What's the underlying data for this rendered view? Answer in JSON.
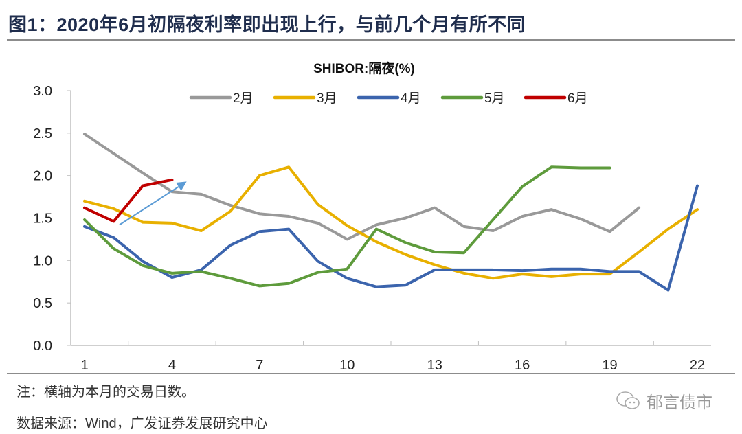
{
  "title": "图1：2020年6月初隔夜利率即出现上行，与前几个月有所不同",
  "note": "注：横轴为本月的交易日数。",
  "source": "数据来源：Wind，广发证券发展研究中心",
  "watermark": "郁言债市",
  "chart_data": {
    "type": "line",
    "title": "SHIBOR:隔夜(%)",
    "xlabel": "",
    "ylabel": "",
    "xlim": [
      1,
      22
    ],
    "ylim": [
      0,
      3.0
    ],
    "x_ticks": [
      "1",
      "4",
      "7",
      "10",
      "13",
      "16",
      "19",
      "22"
    ],
    "y_ticks": [
      "0.0",
      "0.5",
      "1.0",
      "1.5",
      "2.0",
      "2.5",
      "3.0"
    ],
    "legend_position": "top",
    "grid": false,
    "series": [
      {
        "name": "2月",
        "color": "#999999",
        "values": [
          2.49,
          2.26,
          2.03,
          1.81,
          1.78,
          1.65,
          1.55,
          1.52,
          1.44,
          1.25,
          1.42,
          1.5,
          1.62,
          1.4,
          1.35,
          1.52,
          1.6,
          1.49,
          1.34,
          1.62
        ]
      },
      {
        "name": "3月",
        "color": "#e8b000",
        "values": [
          1.7,
          1.61,
          1.45,
          1.44,
          1.35,
          1.58,
          2.0,
          2.1,
          1.66,
          1.41,
          1.22,
          1.07,
          0.95,
          0.85,
          0.79,
          0.84,
          0.81,
          0.84,
          0.84,
          1.1,
          1.37,
          1.6
        ]
      },
      {
        "name": "4月",
        "color": "#3b64ad",
        "values": [
          1.4,
          1.27,
          0.99,
          0.8,
          0.89,
          1.18,
          1.34,
          1.37,
          0.99,
          0.79,
          0.69,
          0.71,
          0.89,
          0.89,
          0.89,
          0.88,
          0.9,
          0.9,
          0.87,
          0.87,
          0.65,
          1.88
        ]
      },
      {
        "name": "5月",
        "color": "#5e9b3c",
        "values": [
          1.48,
          1.14,
          0.94,
          0.85,
          0.87,
          0.79,
          0.7,
          0.73,
          0.86,
          0.9,
          1.37,
          1.21,
          1.1,
          1.09,
          1.48,
          1.87,
          2.1,
          2.09,
          2.09
        ]
      },
      {
        "name": "6月",
        "color": "#c00000",
        "values": [
          1.62,
          1.46,
          1.88,
          1.95
        ]
      }
    ],
    "annotations": [
      {
        "type": "arrow",
        "color": "#5b9bd5",
        "from": [
          2.2,
          1.42
        ],
        "to": [
          4.5,
          1.93
        ]
      }
    ]
  }
}
